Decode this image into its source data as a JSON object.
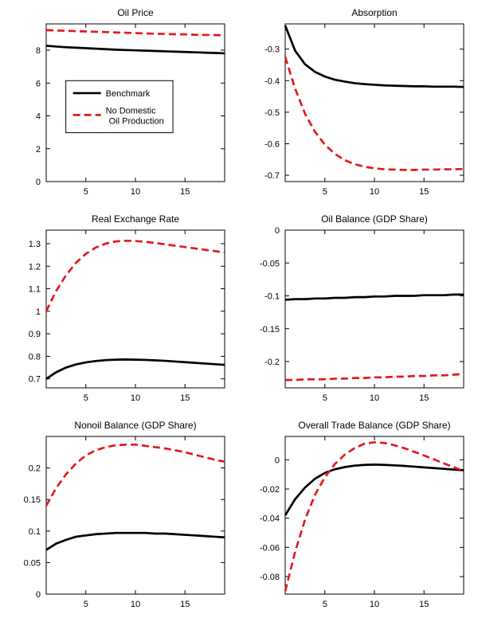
{
  "figure": {
    "background": "#ffffff",
    "axis_color": "#000000",
    "benchmark_color": "#000000",
    "alternative_color": "#e31a1c"
  },
  "chart_data": [
    {
      "type": "line",
      "title": "Oil Price",
      "x": [
        1,
        2,
        3,
        4,
        5,
        6,
        7,
        8,
        9,
        10,
        11,
        12,
        13,
        14,
        15,
        16,
        17,
        18,
        19
      ],
      "xlim": [
        1,
        19
      ],
      "ylim": [
        0,
        9.6
      ],
      "xticks": [
        5,
        10,
        15
      ],
      "yticks": [
        0,
        2,
        4,
        6,
        8
      ],
      "series": [
        {
          "name": "Benchmark",
          "id": "benchmark",
          "color": "#000000",
          "dash": "solid",
          "values": [
            8.27,
            8.22,
            8.18,
            8.15,
            8.12,
            8.09,
            8.06,
            8.03,
            8.01,
            7.99,
            7.97,
            7.95,
            7.93,
            7.91,
            7.89,
            7.87,
            7.85,
            7.83,
            7.81
          ]
        },
        {
          "name": "No Domestic Oil Production",
          "id": "no-domestic-oil-production",
          "color": "#e31a1c",
          "dash": "dashed",
          "values": [
            9.22,
            9.2,
            9.18,
            9.16,
            9.14,
            9.12,
            9.1,
            9.08,
            9.06,
            9.04,
            9.02,
            9.0,
            8.99,
            8.97,
            8.96,
            8.94,
            8.93,
            8.92,
            8.9
          ]
        }
      ],
      "legend": {
        "x": 0.11,
        "y": 0.36,
        "w": 0.6,
        "h": 0.33,
        "entries": [
          {
            "series": 0,
            "lines": [
              "Benchmark"
            ],
            "cy": 0.24
          },
          {
            "series": 1,
            "lines": [
              "No Domestic",
              "Oil Production"
            ],
            "cy": 0.66
          }
        ]
      }
    },
    {
      "type": "line",
      "title": "Absorption",
      "x": [
        1,
        2,
        3,
        4,
        5,
        6,
        7,
        8,
        9,
        10,
        11,
        12,
        13,
        14,
        15,
        16,
        17,
        18,
        19
      ],
      "xlim": [
        1,
        19
      ],
      "ylim": [
        -0.72,
        -0.22
      ],
      "xticks": [
        5,
        10,
        15
      ],
      "yticks": [
        -0.3,
        -0.4,
        -0.5,
        -0.6,
        -0.7
      ],
      "series": [
        {
          "name": "Benchmark",
          "id": "benchmark",
          "color": "#000000",
          "dash": "solid",
          "values": [
            -0.225,
            -0.305,
            -0.348,
            -0.372,
            -0.387,
            -0.397,
            -0.403,
            -0.408,
            -0.411,
            -0.413,
            -0.415,
            -0.416,
            -0.417,
            -0.418,
            -0.418,
            -0.419,
            -0.419,
            -0.419,
            -0.42
          ]
        },
        {
          "name": "No Domestic Oil Production",
          "id": "no-domestic-oil-production",
          "color": "#e31a1c",
          "dash": "dashed",
          "values": [
            -0.325,
            -0.425,
            -0.505,
            -0.562,
            -0.603,
            -0.632,
            -0.652,
            -0.665,
            -0.673,
            -0.678,
            -0.681,
            -0.682,
            -0.683,
            -0.683,
            -0.682,
            -0.682,
            -0.681,
            -0.681,
            -0.68
          ]
        }
      ]
    },
    {
      "type": "line",
      "title": "Real Exchange Rate",
      "x": [
        1,
        2,
        3,
        4,
        5,
        6,
        7,
        8,
        9,
        10,
        11,
        12,
        13,
        14,
        15,
        16,
        17,
        18,
        19
      ],
      "xlim": [
        1,
        19
      ],
      "ylim": [
        0.66,
        1.36
      ],
      "xticks": [
        5,
        10,
        15
      ],
      "yticks": [
        0.7,
        0.8,
        0.9,
        1,
        1.1,
        1.2,
        1.3
      ],
      "series": [
        {
          "name": "Benchmark",
          "id": "benchmark",
          "color": "#000000",
          "dash": "solid",
          "values": [
            0.7,
            0.729,
            0.75,
            0.764,
            0.773,
            0.779,
            0.783,
            0.785,
            0.786,
            0.785,
            0.784,
            0.782,
            0.78,
            0.777,
            0.774,
            0.771,
            0.768,
            0.765,
            0.762
          ]
        },
        {
          "name": "No Domestic Oil Production",
          "id": "no-domestic-oil-production",
          "color": "#e31a1c",
          "dash": "dashed",
          "values": [
            1.0,
            1.09,
            1.16,
            1.215,
            1.255,
            1.283,
            1.3,
            1.31,
            1.313,
            1.312,
            1.308,
            1.303,
            1.297,
            1.291,
            1.285,
            1.279,
            1.273,
            1.267,
            1.261
          ]
        }
      ]
    },
    {
      "type": "line",
      "title": "Oil Balance (GDP Share)",
      "x": [
        1,
        2,
        3,
        4,
        5,
        6,
        7,
        8,
        9,
        10,
        11,
        12,
        13,
        14,
        15,
        16,
        17,
        18,
        19
      ],
      "xlim": [
        1,
        19
      ],
      "ylim": [
        -0.24,
        0
      ],
      "xticks": [
        5,
        10,
        15
      ],
      "yticks": [
        0,
        -0.05,
        -0.1,
        -0.15,
        -0.2
      ],
      "series": [
        {
          "name": "Benchmark",
          "id": "benchmark",
          "color": "#000000",
          "dash": "solid",
          "values": [
            -0.106,
            -0.105,
            -0.105,
            -0.104,
            -0.104,
            -0.103,
            -0.103,
            -0.102,
            -0.102,
            -0.101,
            -0.101,
            -0.1,
            -0.1,
            -0.1,
            -0.099,
            -0.099,
            -0.099,
            -0.098,
            -0.098
          ]
        },
        {
          "name": "No Domestic Oil Production",
          "id": "no-domestic-oil-production",
          "color": "#e31a1c",
          "dash": "dashed",
          "values": [
            -0.228,
            -0.228,
            -0.227,
            -0.227,
            -0.227,
            -0.226,
            -0.226,
            -0.225,
            -0.225,
            -0.224,
            -0.224,
            -0.223,
            -0.223,
            -0.222,
            -0.222,
            -0.221,
            -0.221,
            -0.22,
            -0.219
          ]
        }
      ]
    },
    {
      "type": "line",
      "title": "Nonoil Balance (GDP Share)",
      "x": [
        1,
        2,
        3,
        4,
        5,
        6,
        7,
        8,
        9,
        10,
        11,
        12,
        13,
        14,
        15,
        16,
        17,
        18,
        19
      ],
      "xlim": [
        1,
        19
      ],
      "ylim": [
        0,
        0.25
      ],
      "xticks": [
        5,
        10,
        15
      ],
      "yticks": [
        0,
        0.05,
        0.1,
        0.15,
        0.2
      ],
      "series": [
        {
          "name": "Benchmark",
          "id": "benchmark",
          "color": "#000000",
          "dash": "solid",
          "values": [
            0.07,
            0.08,
            0.086,
            0.091,
            0.093,
            0.095,
            0.096,
            0.097,
            0.097,
            0.097,
            0.097,
            0.096,
            0.096,
            0.095,
            0.094,
            0.093,
            0.092,
            0.091,
            0.09
          ]
        },
        {
          "name": "No Domestic Oil Production",
          "id": "no-domestic-oil-production",
          "color": "#e31a1c",
          "dash": "dashed",
          "values": [
            0.14,
            0.168,
            0.19,
            0.207,
            0.22,
            0.228,
            0.233,
            0.236,
            0.237,
            0.237,
            0.235,
            0.233,
            0.231,
            0.228,
            0.225,
            0.221,
            0.217,
            0.213,
            0.21
          ]
        }
      ]
    },
    {
      "type": "line",
      "title": "Overall Trade Balance (GDP Share)",
      "x": [
        1,
        2,
        3,
        4,
        5,
        6,
        7,
        8,
        9,
        10,
        11,
        12,
        13,
        14,
        15,
        16,
        17,
        18,
        19
      ],
      "xlim": [
        1,
        19
      ],
      "ylim": [
        -0.092,
        0.016
      ],
      "xticks": [
        5,
        10,
        15
      ],
      "yticks": [
        0,
        -0.02,
        -0.04,
        -0.06,
        -0.08
      ],
      "series": [
        {
          "name": "Benchmark",
          "id": "benchmark",
          "color": "#000000",
          "dash": "solid",
          "values": [
            -0.038,
            -0.027,
            -0.019,
            -0.013,
            -0.009,
            -0.0065,
            -0.005,
            -0.004,
            -0.0035,
            -0.0033,
            -0.0035,
            -0.0038,
            -0.0042,
            -0.0047,
            -0.0052,
            -0.0057,
            -0.0062,
            -0.0067,
            -0.0072
          ]
        },
        {
          "name": "No Domestic Oil Production",
          "id": "no-domestic-oil-production",
          "color": "#e31a1c",
          "dash": "dashed",
          "values": [
            -0.09,
            -0.063,
            -0.041,
            -0.024,
            -0.012,
            -0.003,
            0.0035,
            0.008,
            0.011,
            0.012,
            0.0115,
            0.01,
            0.008,
            0.0055,
            0.003,
            0.0003,
            -0.0025,
            -0.005,
            -0.0078
          ]
        }
      ]
    }
  ]
}
